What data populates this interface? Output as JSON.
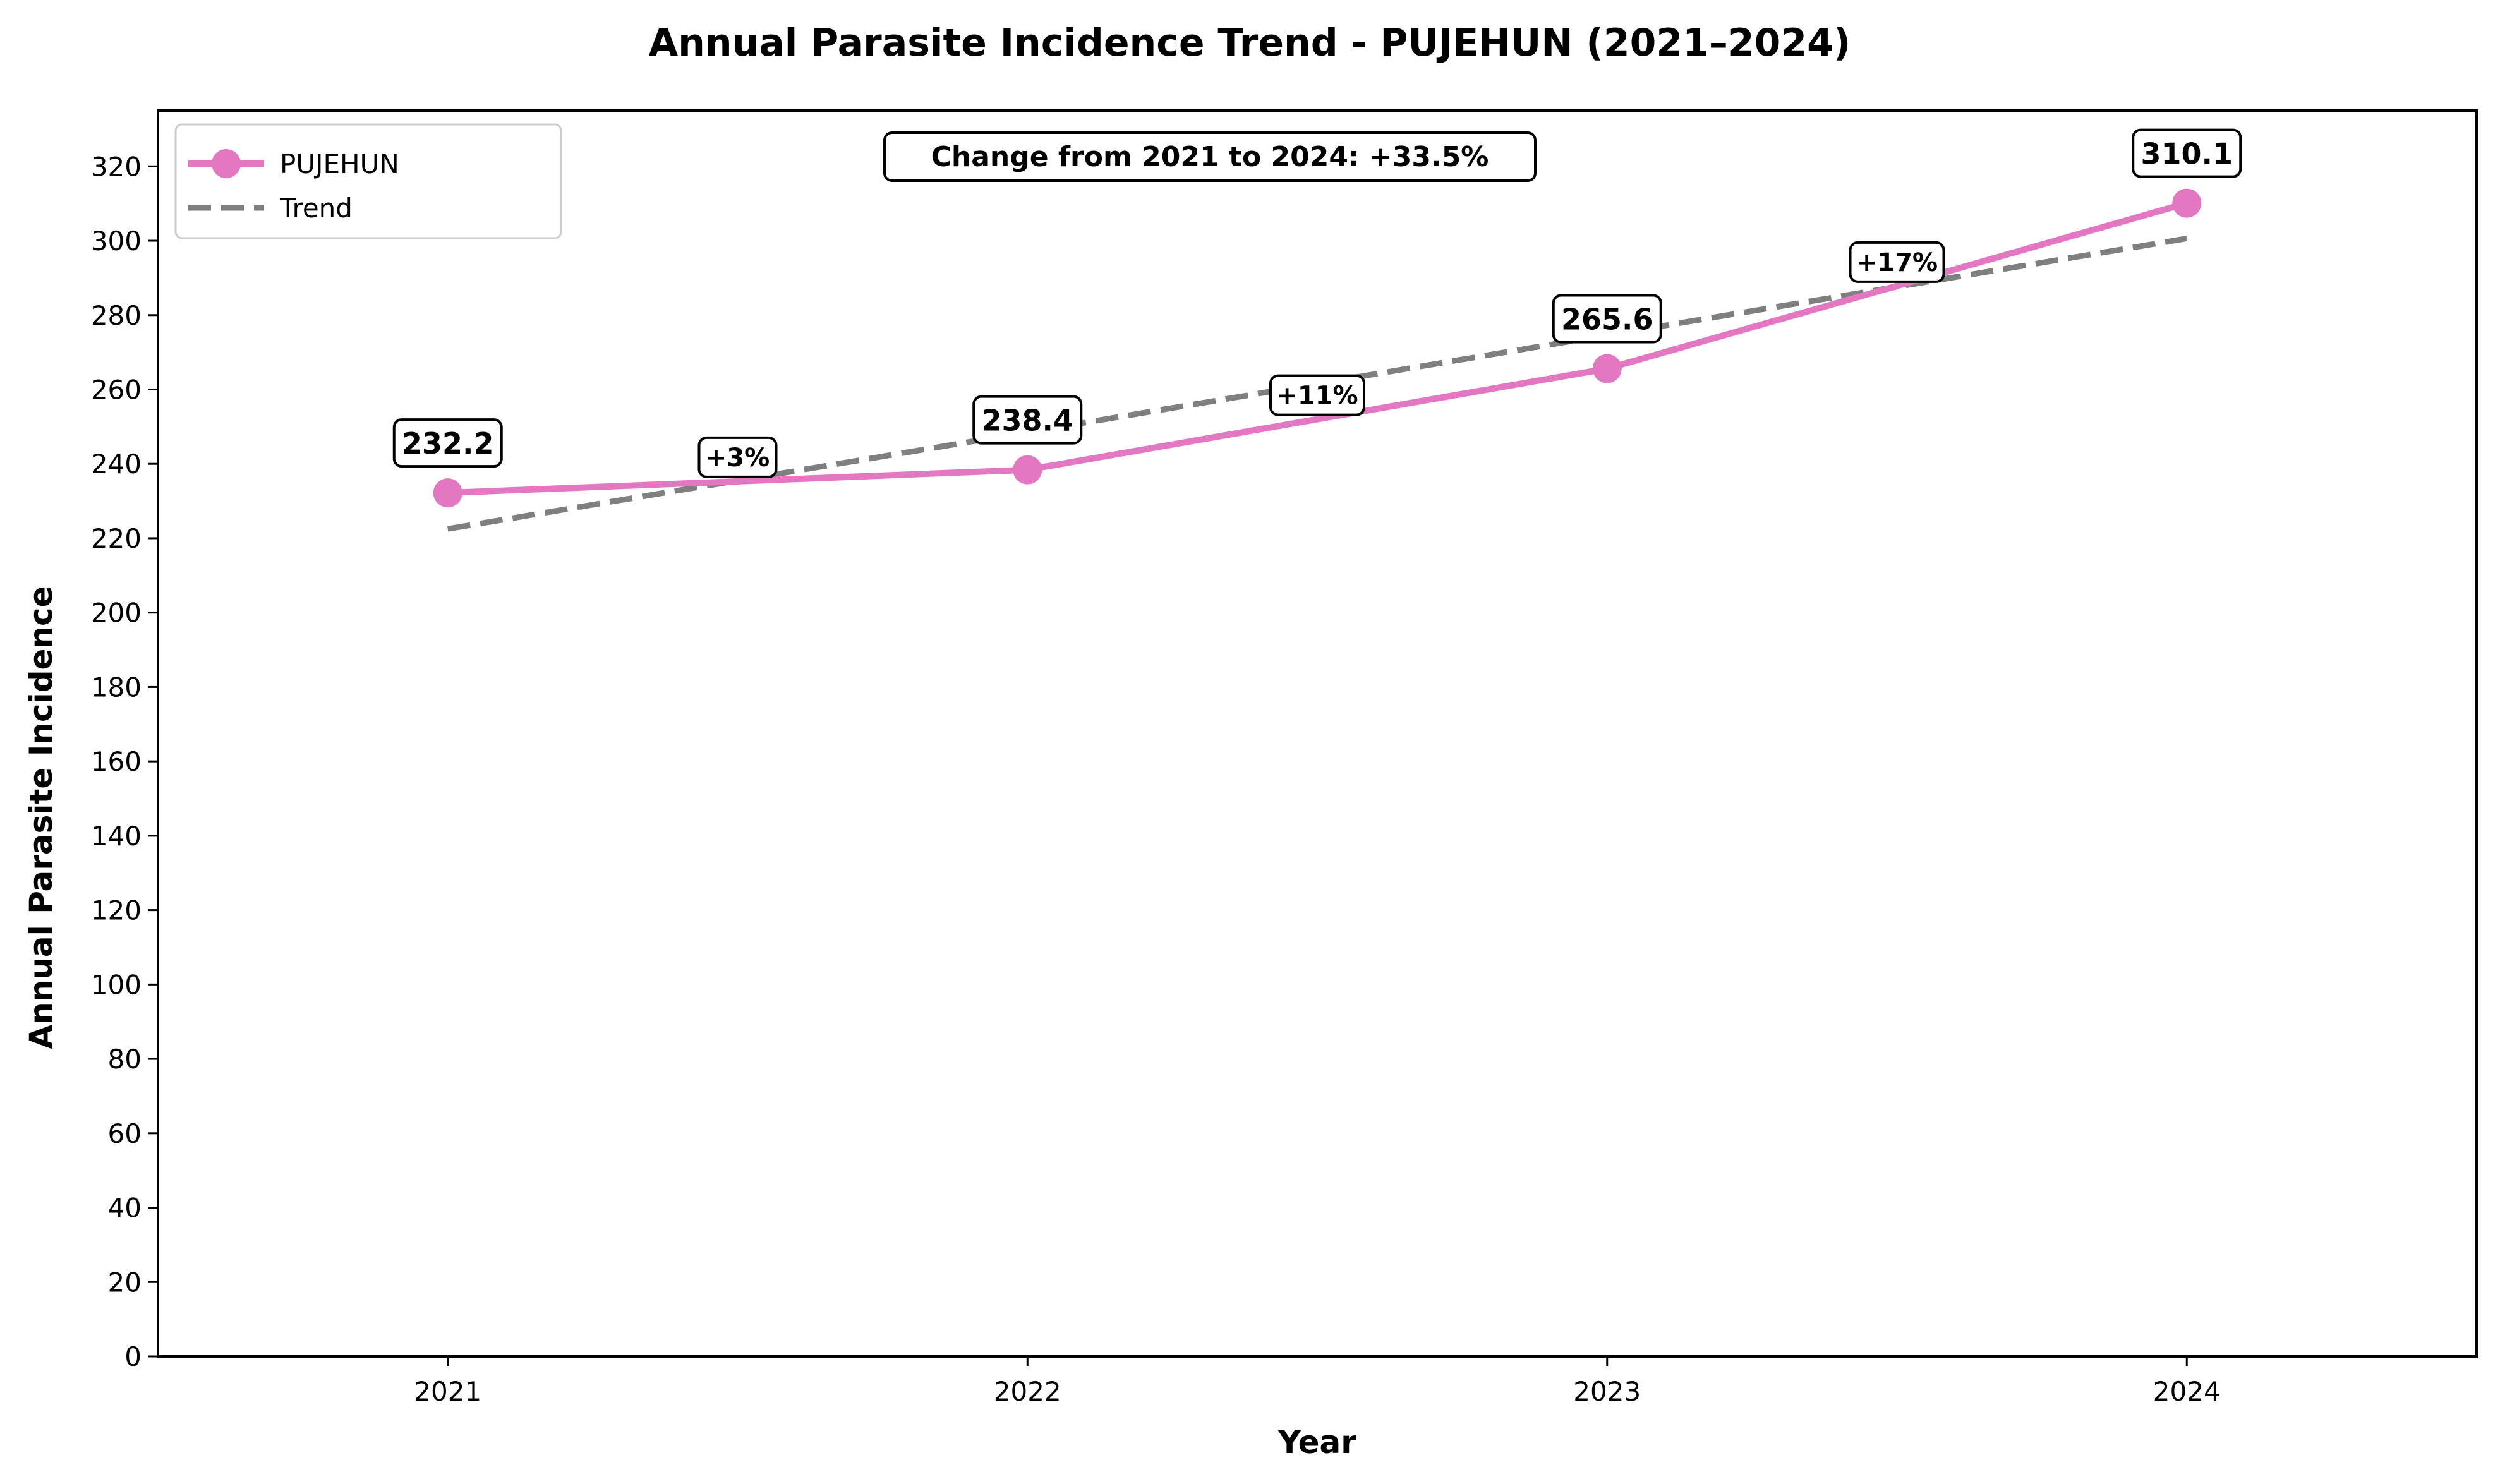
{
  "chart_data": {
    "type": "line",
    "title": "Annual Parasite Incidence Trend - PUJEHUN (2021–2024)",
    "xlabel": "Year",
    "ylabel": "Annual Parasite Incidence",
    "x": [
      "2021",
      "2022",
      "2023",
      "2024"
    ],
    "xlim": [
      2020.5,
      2024.5
    ],
    "ylim": [
      0,
      335
    ],
    "yticks": [
      0,
      20,
      40,
      60,
      80,
      100,
      120,
      140,
      160,
      180,
      200,
      220,
      240,
      260,
      280,
      300,
      320
    ],
    "grid": false,
    "legend_position": "top-left",
    "series": [
      {
        "name": "PUJEHUN",
        "values": [
          232.2,
          238.4,
          265.6,
          310.1
        ],
        "value_labels": [
          "232.2",
          "238.4",
          "265.6",
          "310.1"
        ],
        "color": "#e377c2",
        "style": "solid-with-markers"
      },
      {
        "name": "Trend",
        "values": [
          222.5,
          248.5,
          274.6,
          300.6
        ],
        "color": "#7f7f7f",
        "style": "dashed"
      }
    ],
    "segment_changes": [
      {
        "x": 2021.5,
        "y": 235.3,
        "label": "+3%"
      },
      {
        "x": 2022.5,
        "y": 252.0,
        "label": "+11%"
      },
      {
        "x": 2023.5,
        "y": 287.8,
        "label": "+17%"
      }
    ],
    "summary_annotation": "Change from 2021 to 2024: +33.5%"
  }
}
